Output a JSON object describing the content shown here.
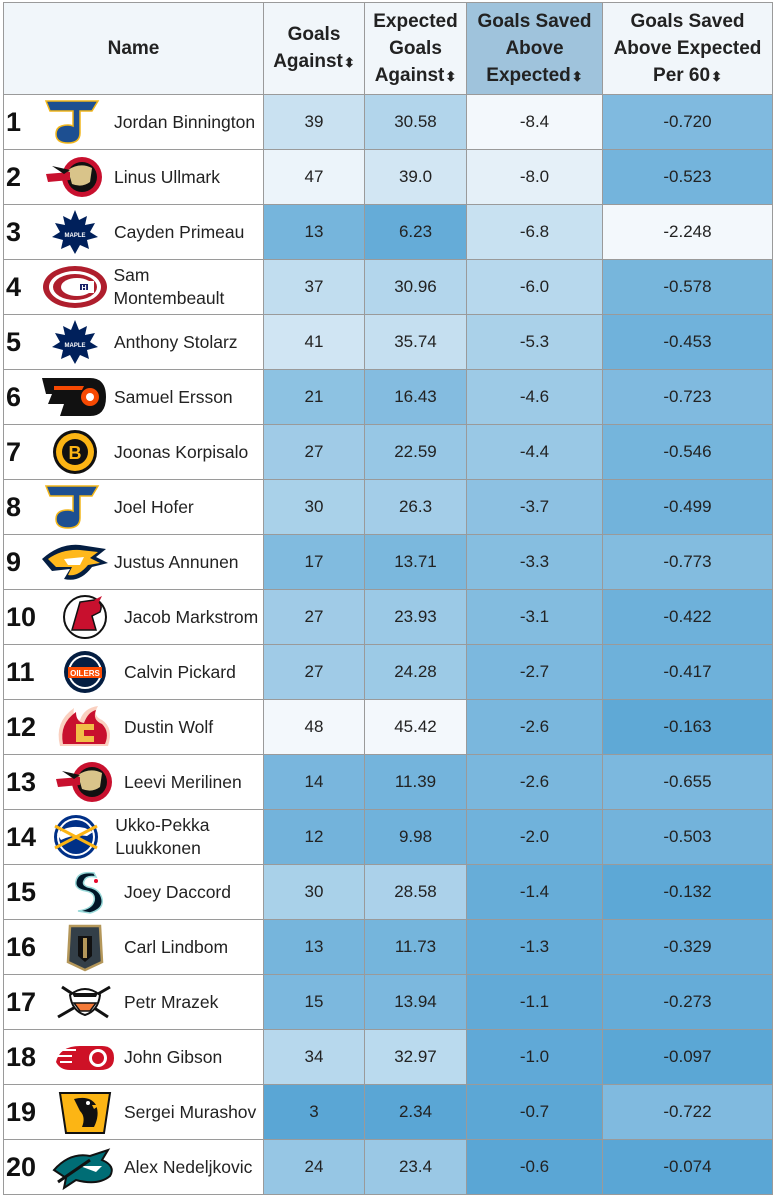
{
  "header": {
    "name": "Name",
    "col1": "Goals Against",
    "col2": "Expected Goals Against",
    "col3": "Goals Saved Above Expected",
    "col4": "Goals Saved Above Expected Per 60",
    "sort_glyph": "⬍"
  },
  "chart_data": {
    "type": "table",
    "columns": [
      "Name",
      "Goals Against",
      "Expected Goals Against",
      "Goals Saved Above Expected",
      "Goals Saved Above Expected Per 60"
    ],
    "sorted_by": "Goals Saved Above Expected",
    "rows": [
      {
        "rank": "1",
        "name": "Jordan Binnington",
        "logo": "stl-blues-logo",
        "ga": "39",
        "xga": "30.58",
        "gsax": "-8.4",
        "gsax60": "-0.720"
      },
      {
        "rank": "2",
        "name": "Linus Ullmark",
        "logo": "ottawa-senators-logo",
        "ga": "47",
        "xga": "39.0",
        "gsax": "-8.0",
        "gsax60": "-0.523"
      },
      {
        "rank": "3",
        "name": "Cayden Primeau",
        "logo": "toronto-maple-leafs-logo",
        "ga": "13",
        "xga": "6.23",
        "gsax": "-6.8",
        "gsax60": "-2.248"
      },
      {
        "rank": "4",
        "name": "Sam Montembeault",
        "logo": "montreal-canadiens-logo",
        "ga": "37",
        "xga": "30.96",
        "gsax": "-6.0",
        "gsax60": "-0.578"
      },
      {
        "rank": "5",
        "name": "Anthony Stolarz",
        "logo": "toronto-maple-leafs-logo",
        "ga": "41",
        "xga": "35.74",
        "gsax": "-5.3",
        "gsax60": "-0.453"
      },
      {
        "rank": "6",
        "name": "Samuel Ersson",
        "logo": "philadelphia-flyers-logo",
        "ga": "21",
        "xga": "16.43",
        "gsax": "-4.6",
        "gsax60": "-0.723"
      },
      {
        "rank": "7",
        "name": "Joonas Korpisalo",
        "logo": "boston-bruins-logo",
        "ga": "27",
        "xga": "22.59",
        "gsax": "-4.4",
        "gsax60": "-0.546"
      },
      {
        "rank": "8",
        "name": "Joel Hofer",
        "logo": "stl-blues-logo",
        "ga": "30",
        "xga": "26.3",
        "gsax": "-3.7",
        "gsax60": "-0.499"
      },
      {
        "rank": "9",
        "name": "Justus Annunen",
        "logo": "nashville-predators-logo",
        "ga": "17",
        "xga": "13.71",
        "gsax": "-3.3",
        "gsax60": "-0.773"
      },
      {
        "rank": "10",
        "name": "Jacob Markstrom",
        "logo": "new-jersey-devils-logo",
        "ga": "27",
        "xga": "23.93",
        "gsax": "-3.1",
        "gsax60": "-0.422"
      },
      {
        "rank": "11",
        "name": "Calvin Pickard",
        "logo": "edmonton-oilers-logo",
        "ga": "27",
        "xga": "24.28",
        "gsax": "-2.7",
        "gsax60": "-0.417"
      },
      {
        "rank": "12",
        "name": "Dustin Wolf",
        "logo": "calgary-flames-logo",
        "ga": "48",
        "xga": "45.42",
        "gsax": "-2.6",
        "gsax60": "-0.163"
      },
      {
        "rank": "13",
        "name": "Leevi Merilinen",
        "logo": "ottawa-senators-logo",
        "ga": "14",
        "xga": "11.39",
        "gsax": "-2.6",
        "gsax60": "-0.655"
      },
      {
        "rank": "14",
        "name": "Ukko-Pekka Luukkonen",
        "logo": "buffalo-sabres-logo",
        "ga": "12",
        "xga": "9.98",
        "gsax": "-2.0",
        "gsax60": "-0.503"
      },
      {
        "rank": "15",
        "name": "Joey Daccord",
        "logo": "seattle-kraken-logo",
        "ga": "30",
        "xga": "28.58",
        "gsax": "-1.4",
        "gsax60": "-0.132"
      },
      {
        "rank": "16",
        "name": "Carl Lindbom",
        "logo": "vegas-golden-knights-logo",
        "ga": "13",
        "xga": "11.73",
        "gsax": "-1.3",
        "gsax60": "-0.329"
      },
      {
        "rank": "17",
        "name": "Petr Mrazek",
        "logo": "anaheim-ducks-logo",
        "ga": "15",
        "xga": "13.94",
        "gsax": "-1.1",
        "gsax60": "-0.273"
      },
      {
        "rank": "18",
        "name": "John Gibson",
        "logo": "detroit-red-wings-logo",
        "ga": "34",
        "xga": "32.97",
        "gsax": "-1.0",
        "gsax60": "-0.097"
      },
      {
        "rank": "19",
        "name": "Sergei Murashov",
        "logo": "pittsburgh-penguins-logo",
        "ga": "3",
        "xga": "2.34",
        "gsax": "-0.7",
        "gsax60": "-0.722"
      },
      {
        "rank": "20",
        "name": "Alex Nedeljkovic",
        "logo": "san-jose-sharks-logo",
        "ga": "24",
        "xga": "23.4",
        "gsax": "-0.6",
        "gsax60": "-0.074"
      }
    ]
  },
  "colors": {
    "header_bg": "#f1f6fa",
    "active_header_bg": "#9fc3dc",
    "scale_light": "#f3f8fc",
    "scale_dark": "#5aa6d5",
    "border": "#9a9a9a"
  }
}
